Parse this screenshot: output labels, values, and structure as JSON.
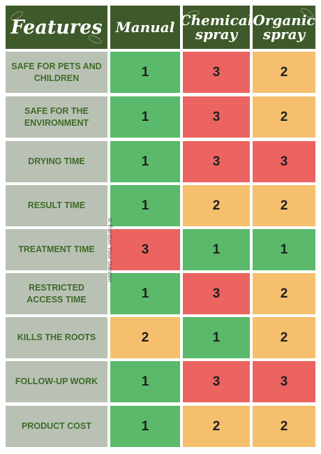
{
  "header": {
    "features": "Features",
    "columns": [
      "Manual",
      "Chemical\nspray",
      "Organic\nspray"
    ]
  },
  "watermark": "© Pardon Your Garden",
  "colors": {
    "green": "#5ab96a",
    "red": "#eb6461",
    "yellow": "#f5bf6d",
    "header": "#3f5a2a",
    "feature_bg": "#b9c1b5"
  },
  "rows": [
    {
      "feature": "SAFE FOR PETS AND CHILDREN",
      "values": [
        "1",
        "3",
        "2"
      ],
      "colors": [
        "g",
        "r",
        "y"
      ]
    },
    {
      "feature": "SAFE FOR THE ENVIRONMENT",
      "values": [
        "1",
        "3",
        "2"
      ],
      "colors": [
        "g",
        "r",
        "y"
      ]
    },
    {
      "feature": "DRYING TIME",
      "values": [
        "1",
        "3",
        "3"
      ],
      "colors": [
        "g",
        "r",
        "r"
      ]
    },
    {
      "feature": "RESULT TIME",
      "values": [
        "1",
        "2",
        "2"
      ],
      "colors": [
        "g",
        "y",
        "y"
      ]
    },
    {
      "feature": "TREATMENT TIME",
      "values": [
        "3",
        "1",
        "1"
      ],
      "colors": [
        "r",
        "g",
        "g"
      ]
    },
    {
      "feature": "RESTRICTED ACCESS TIME",
      "values": [
        "1",
        "3",
        "2"
      ],
      "colors": [
        "g",
        "r",
        "y"
      ]
    },
    {
      "feature": "KILLS THE ROOTS",
      "values": [
        "2",
        "1",
        "2"
      ],
      "colors": [
        "y",
        "g",
        "y"
      ]
    },
    {
      "feature": "FOLLOW-UP WORK",
      "values": [
        "1",
        "3",
        "3"
      ],
      "colors": [
        "g",
        "r",
        "r"
      ]
    },
    {
      "feature": "PRODUCT COST",
      "values": [
        "1",
        "2",
        "2"
      ],
      "colors": [
        "g",
        "y",
        "y"
      ]
    }
  ]
}
